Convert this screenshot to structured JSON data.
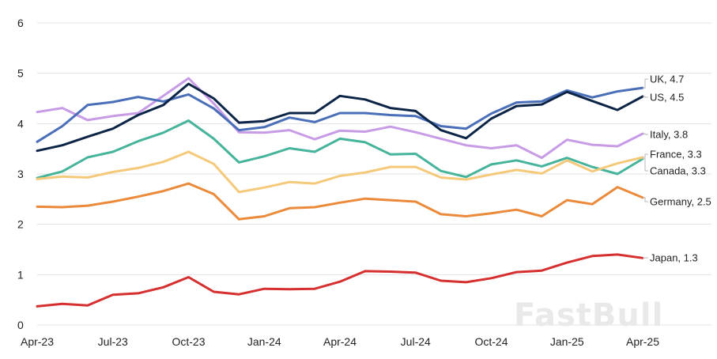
{
  "chart_data": {
    "type": "line",
    "title": "",
    "xlabel": "",
    "ylabel": "",
    "ylim": [
      0,
      6
    ],
    "yticks": [
      "0",
      "1",
      "2",
      "3",
      "4",
      "5",
      "6"
    ],
    "grid": true,
    "watermark": "FastBull",
    "x": [
      "Apr-23",
      "May-23",
      "Jun-23",
      "Jul-23",
      "Aug-23",
      "Sep-23",
      "Oct-23",
      "Nov-23",
      "Dec-23",
      "Jan-24",
      "Feb-24",
      "Mar-24",
      "Apr-24",
      "May-24",
      "Jun-24",
      "Jul-24",
      "Aug-24",
      "Sep-24",
      "Oct-24",
      "Nov-24",
      "Dec-24",
      "Jan-25",
      "Feb-25",
      "Mar-25",
      "Apr-25"
    ],
    "xtick_labels": [
      "Apr-23",
      "Jul-23",
      "Oct-23",
      "Jan-24",
      "Apr-24",
      "Jul-24",
      "Oct-24",
      "Jan-25",
      "Apr-25"
    ],
    "series": [
      {
        "name": "Japan",
        "end_label": "Japan, 1.3",
        "color": "#d62f2f",
        "values": [
          0.37,
          0.42,
          0.39,
          0.6,
          0.63,
          0.75,
          0.95,
          0.66,
          0.61,
          0.72,
          0.71,
          0.72,
          0.86,
          1.07,
          1.06,
          1.04,
          0.88,
          0.85,
          0.93,
          1.05,
          1.08,
          1.24,
          1.37,
          1.4,
          1.33
        ]
      },
      {
        "name": "Germany",
        "end_label": "Germany, 2.5",
        "color": "#ea8a3a",
        "values": [
          2.35,
          2.34,
          2.37,
          2.45,
          2.55,
          2.66,
          2.81,
          2.6,
          2.1,
          2.16,
          2.32,
          2.34,
          2.43,
          2.51,
          2.48,
          2.45,
          2.2,
          2.16,
          2.22,
          2.29,
          2.16,
          2.48,
          2.4,
          2.74,
          2.53
        ]
      },
      {
        "name": "Canada",
        "end_label": "Canada, 3.3",
        "color": "#45b49a",
        "values": [
          2.92,
          3.05,
          3.33,
          3.44,
          3.65,
          3.82,
          4.06,
          3.7,
          3.23,
          3.35,
          3.51,
          3.44,
          3.7,
          3.63,
          3.39,
          3.4,
          3.06,
          2.94,
          3.19,
          3.27,
          3.15,
          3.32,
          3.14,
          3.0,
          3.3
        ]
      },
      {
        "name": "France",
        "end_label": "France, 3.3",
        "color": "#f5c97a",
        "values": [
          2.9,
          2.95,
          2.93,
          3.04,
          3.12,
          3.24,
          3.44,
          3.2,
          2.64,
          2.73,
          2.84,
          2.81,
          2.96,
          3.03,
          3.14,
          3.14,
          2.93,
          2.89,
          2.99,
          3.08,
          3.01,
          3.27,
          3.05,
          3.21,
          3.33
        ]
      },
      {
        "name": "Italy",
        "end_label": "Italy, 3.8",
        "color": "#c79be6",
        "values": [
          4.23,
          4.31,
          4.07,
          4.15,
          4.21,
          4.55,
          4.9,
          4.4,
          3.83,
          3.82,
          3.87,
          3.69,
          3.86,
          3.84,
          3.94,
          3.83,
          3.7,
          3.57,
          3.51,
          3.57,
          3.32,
          3.68,
          3.58,
          3.55,
          3.8
        ]
      },
      {
        "name": "UK",
        "end_label": "UK, 4.7",
        "color": "#4a6fb8",
        "values": [
          3.64,
          3.95,
          4.37,
          4.43,
          4.53,
          4.44,
          4.58,
          4.3,
          3.87,
          3.93,
          4.12,
          4.03,
          4.21,
          4.21,
          4.17,
          4.15,
          3.95,
          3.9,
          4.2,
          4.42,
          4.44,
          4.66,
          4.52,
          4.64,
          4.71
        ]
      },
      {
        "name": "US",
        "end_label": "US, 4.5",
        "color": "#0c2547",
        "values": [
          3.46,
          3.57,
          3.74,
          3.9,
          4.17,
          4.37,
          4.79,
          4.5,
          4.02,
          4.05,
          4.21,
          4.21,
          4.55,
          4.48,
          4.31,
          4.25,
          3.87,
          3.71,
          4.1,
          4.35,
          4.38,
          4.63,
          4.45,
          4.27,
          4.54
        ]
      }
    ]
  }
}
